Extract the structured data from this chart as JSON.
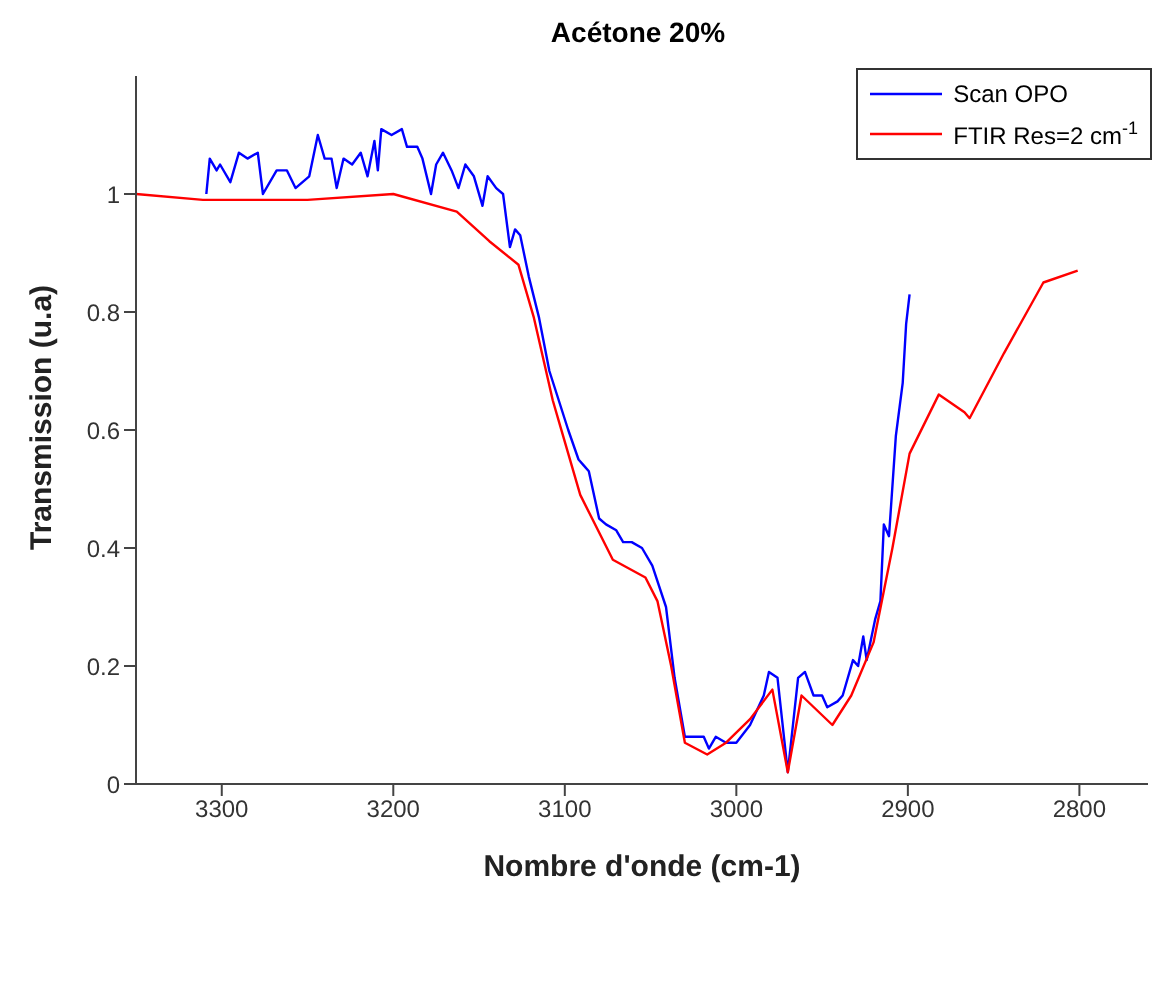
{
  "chart_data": {
    "type": "line",
    "title": "Acétone 20%",
    "xlabel": "Nombre d'onde (cm-1)",
    "ylabel": "Transmission (u.a)",
    "xlim": [
      3350,
      2760
    ],
    "xticks": [
      3300,
      3200,
      3100,
      3000,
      2900,
      2800
    ],
    "ylim": [
      0,
      1.2
    ],
    "yticks": [
      0,
      0.2,
      0.4,
      0.6,
      0.8,
      1
    ],
    "grid": false,
    "legend": "top right",
    "marker": "none",
    "line_style": "solid",
    "series": [
      {
        "name": "Scan OPO",
        "color": "#0000ff",
        "x": [
          3309,
          3307,
          3303,
          3301,
          3295,
          3290,
          3285,
          3279,
          3276,
          3268,
          3262,
          3257,
          3249,
          3244,
          3240,
          3236,
          3233,
          3229,
          3224,
          3219,
          3215,
          3211,
          3209,
          3207,
          3201,
          3195,
          3192,
          3186,
          3183,
          3178,
          3175,
          3171,
          3166,
          3162,
          3158,
          3153,
          3148,
          3145,
          3140,
          3136,
          3132,
          3129,
          3126,
          3121,
          3115,
          3109,
          3098,
          3092,
          3089,
          3086,
          3080,
          3076,
          3070,
          3066,
          3061,
          3055,
          3049,
          3041,
          3036,
          3030,
          3024,
          3019,
          3016,
          3012,
          3006,
          3000,
          2992,
          2984,
          2981,
          2976,
          2970,
          2964,
          2960,
          2955,
          2950,
          2947,
          2941,
          2938,
          2932,
          2929,
          2926,
          2924,
          2919,
          2916,
          2914,
          2911,
          2907,
          2903,
          2901,
          2899
        ],
        "values": [
          1.0,
          1.06,
          1.04,
          1.05,
          1.02,
          1.07,
          1.06,
          1.07,
          1.0,
          1.04,
          1.04,
          1.01,
          1.03,
          1.1,
          1.06,
          1.06,
          1.01,
          1.06,
          1.05,
          1.07,
          1.03,
          1.09,
          1.04,
          1.11,
          1.1,
          1.11,
          1.08,
          1.08,
          1.06,
          1.0,
          1.05,
          1.07,
          1.04,
          1.01,
          1.05,
          1.03,
          0.98,
          1.03,
          1.01,
          1.0,
          0.91,
          0.94,
          0.93,
          0.86,
          0.79,
          0.7,
          0.6,
          0.55,
          0.54,
          0.53,
          0.45,
          0.44,
          0.43,
          0.41,
          0.41,
          0.4,
          0.37,
          0.3,
          0.18,
          0.08,
          0.08,
          0.08,
          0.06,
          0.08,
          0.07,
          0.07,
          0.1,
          0.15,
          0.19,
          0.18,
          0.02,
          0.18,
          0.19,
          0.15,
          0.15,
          0.13,
          0.14,
          0.15,
          0.21,
          0.2,
          0.25,
          0.21,
          0.28,
          0.31,
          0.44,
          0.42,
          0.59,
          0.68,
          0.78,
          0.83
        ]
      },
      {
        "name": "FTIR Res=2 cm$^{-1}$",
        "color": "#ff0000",
        "x": [
          3350,
          3311,
          3250,
          3200,
          3163,
          3144,
          3127,
          3118,
          3107,
          3103,
          3091,
          3072,
          3053,
          3046,
          3038,
          3030,
          3017,
          3006,
          2992,
          2979,
          2970,
          2962,
          2944,
          2933,
          2920,
          2909,
          2899,
          2882,
          2867,
          2864,
          2844,
          2821,
          2801
        ],
        "values": [
          1.0,
          0.99,
          0.99,
          1.0,
          0.97,
          0.92,
          0.88,
          0.79,
          0.65,
          0.61,
          0.49,
          0.38,
          0.35,
          0.31,
          0.2,
          0.07,
          0.05,
          0.07,
          0.11,
          0.16,
          0.02,
          0.15,
          0.1,
          0.15,
          0.24,
          0.4,
          0.56,
          0.66,
          0.63,
          0.62,
          0.73,
          0.85,
          0.87
        ]
      }
    ]
  }
}
